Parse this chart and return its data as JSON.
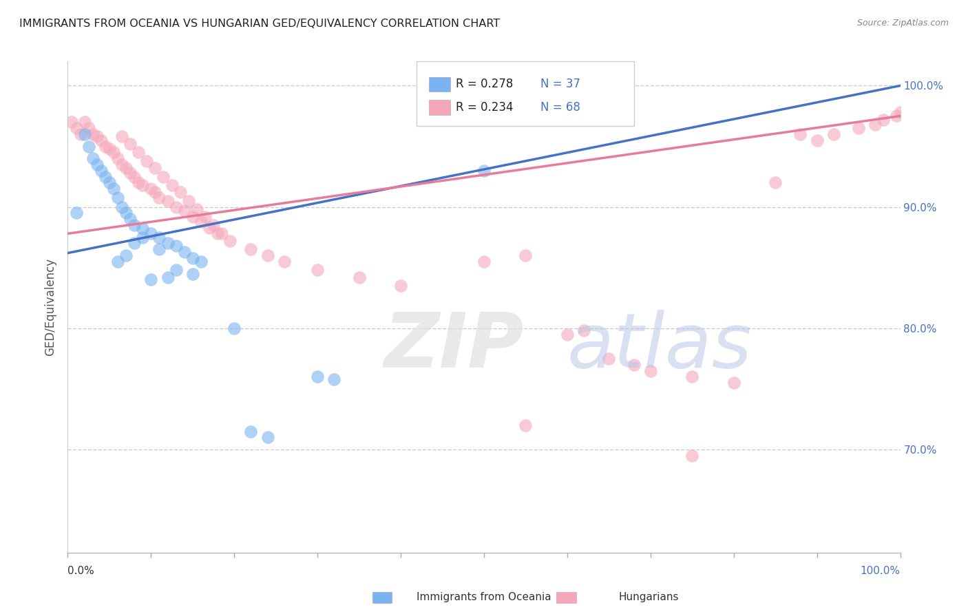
{
  "title": "IMMIGRANTS FROM OCEANIA VS HUNGARIAN GED/EQUIVALENCY CORRELATION CHART",
  "source": "Source: ZipAtlas.com",
  "ylabel": "GED/Equivalency",
  "xlim": [
    0.0,
    1.0
  ],
  "ylim": [
    0.615,
    1.02
  ],
  "ytick_labels": [
    "70.0%",
    "80.0%",
    "90.0%",
    "100.0%"
  ],
  "ytick_values": [
    0.7,
    0.8,
    0.9,
    1.0
  ],
  "blue_color": "#7ab3ef",
  "pink_color": "#f4a7b9",
  "blue_line_color": "#4472c4",
  "pink_line_color": "#e87a9a",
  "blue_scatter": [
    [
      0.01,
      0.895
    ],
    [
      0.02,
      0.96
    ],
    [
      0.025,
      0.95
    ],
    [
      0.03,
      0.94
    ],
    [
      0.035,
      0.935
    ],
    [
      0.04,
      0.93
    ],
    [
      0.045,
      0.925
    ],
    [
      0.05,
      0.92
    ],
    [
      0.055,
      0.915
    ],
    [
      0.06,
      0.908
    ],
    [
      0.065,
      0.9
    ],
    [
      0.07,
      0.895
    ],
    [
      0.075,
      0.89
    ],
    [
      0.08,
      0.885
    ],
    [
      0.09,
      0.882
    ],
    [
      0.1,
      0.878
    ],
    [
      0.11,
      0.875
    ],
    [
      0.12,
      0.87
    ],
    [
      0.13,
      0.868
    ],
    [
      0.14,
      0.863
    ],
    [
      0.15,
      0.858
    ],
    [
      0.16,
      0.855
    ],
    [
      0.09,
      0.875
    ],
    [
      0.11,
      0.865
    ],
    [
      0.08,
      0.87
    ],
    [
      0.07,
      0.86
    ],
    [
      0.06,
      0.855
    ],
    [
      0.15,
      0.845
    ],
    [
      0.2,
      0.8
    ],
    [
      0.1,
      0.84
    ],
    [
      0.12,
      0.842
    ],
    [
      0.13,
      0.848
    ],
    [
      0.22,
      0.715
    ],
    [
      0.24,
      0.71
    ],
    [
      0.3,
      0.76
    ],
    [
      0.32,
      0.758
    ],
    [
      0.5,
      0.93
    ]
  ],
  "pink_scatter": [
    [
      0.005,
      0.97
    ],
    [
      0.01,
      0.965
    ],
    [
      0.015,
      0.96
    ],
    [
      0.02,
      0.97
    ],
    [
      0.025,
      0.965
    ],
    [
      0.03,
      0.96
    ],
    [
      0.035,
      0.958
    ],
    [
      0.04,
      0.955
    ],
    [
      0.045,
      0.95
    ],
    [
      0.05,
      0.948
    ],
    [
      0.055,
      0.945
    ],
    [
      0.06,
      0.94
    ],
    [
      0.065,
      0.935
    ],
    [
      0.07,
      0.932
    ],
    [
      0.075,
      0.928
    ],
    [
      0.08,
      0.925
    ],
    [
      0.085,
      0.92
    ],
    [
      0.09,
      0.918
    ],
    [
      0.1,
      0.915
    ],
    [
      0.105,
      0.912
    ],
    [
      0.11,
      0.908
    ],
    [
      0.12,
      0.905
    ],
    [
      0.13,
      0.9
    ],
    [
      0.14,
      0.897
    ],
    [
      0.15,
      0.892
    ],
    [
      0.16,
      0.888
    ],
    [
      0.17,
      0.883
    ],
    [
      0.18,
      0.878
    ],
    [
      0.065,
      0.958
    ],
    [
      0.075,
      0.952
    ],
    [
      0.085,
      0.945
    ],
    [
      0.095,
      0.938
    ],
    [
      0.105,
      0.932
    ],
    [
      0.115,
      0.925
    ],
    [
      0.125,
      0.918
    ],
    [
      0.135,
      0.912
    ],
    [
      0.145,
      0.905
    ],
    [
      0.155,
      0.898
    ],
    [
      0.165,
      0.892
    ],
    [
      0.175,
      0.885
    ],
    [
      0.185,
      0.878
    ],
    [
      0.195,
      0.872
    ],
    [
      0.22,
      0.865
    ],
    [
      0.24,
      0.86
    ],
    [
      0.26,
      0.855
    ],
    [
      0.3,
      0.848
    ],
    [
      0.35,
      0.842
    ],
    [
      0.4,
      0.835
    ],
    [
      0.5,
      0.855
    ],
    [
      0.55,
      0.86
    ],
    [
      0.6,
      0.795
    ],
    [
      0.62,
      0.798
    ],
    [
      0.65,
      0.775
    ],
    [
      0.68,
      0.77
    ],
    [
      0.7,
      0.765
    ],
    [
      0.75,
      0.76
    ],
    [
      0.8,
      0.755
    ],
    [
      0.85,
      0.92
    ],
    [
      0.88,
      0.96
    ],
    [
      0.9,
      0.955
    ],
    [
      0.92,
      0.96
    ],
    [
      0.95,
      0.965
    ],
    [
      0.97,
      0.968
    ],
    [
      0.98,
      0.972
    ],
    [
      0.995,
      0.975
    ],
    [
      1.0,
      0.978
    ],
    [
      0.75,
      0.695
    ],
    [
      0.55,
      0.72
    ]
  ],
  "blue_line_x": [
    0.0,
    1.0
  ],
  "blue_line_y": [
    0.862,
    1.0
  ],
  "pink_line_x": [
    0.0,
    1.0
  ],
  "pink_line_y": [
    0.878,
    0.975
  ]
}
